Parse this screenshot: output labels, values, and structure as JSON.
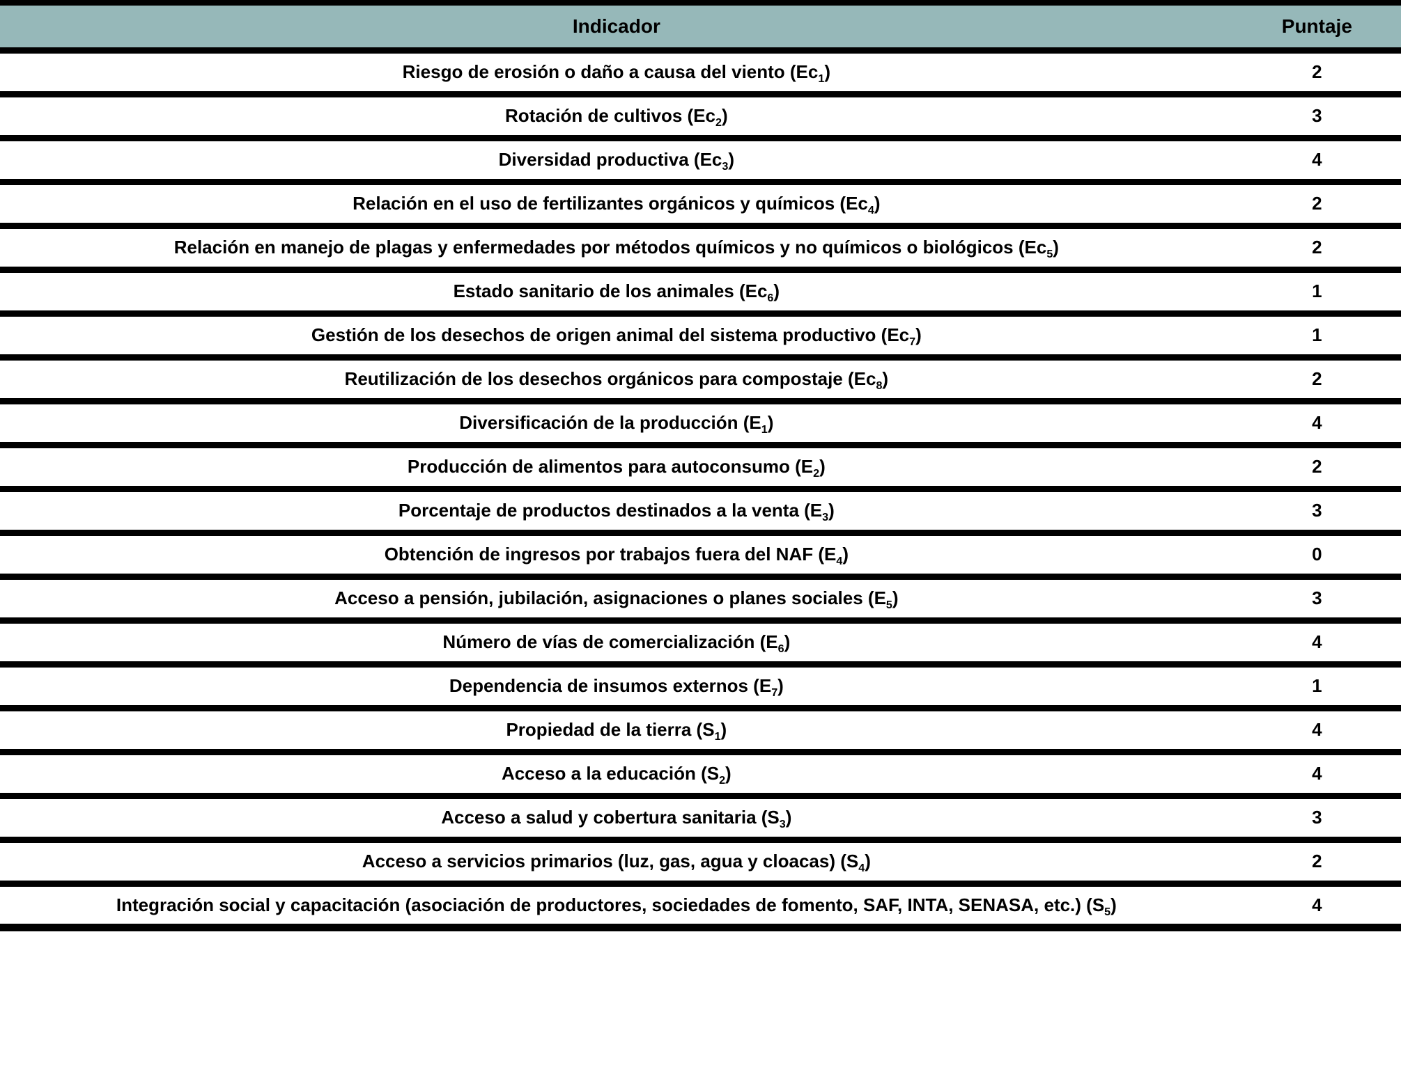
{
  "colors": {
    "header_bg": "#96b8b9",
    "border": "#000000",
    "text": "#000000"
  },
  "table": {
    "header": {
      "indicator": "Indicador",
      "score": "Puntaje"
    },
    "rows": [
      {
        "pre": "Riesgo de erosión o daño a causa del viento (Ec",
        "sub": "1",
        "post": ")",
        "score": "2"
      },
      {
        "pre": "Rotación de cultivos (Ec",
        "sub": "2",
        "post": ")",
        "score": "3"
      },
      {
        "pre": "Diversidad productiva (Ec",
        "sub": "3",
        "post": ")",
        "score": "4"
      },
      {
        "pre": "Relación en el uso de fertilizantes orgánicos y químicos (Ec",
        "sub": "4",
        "post": ")",
        "score": "2"
      },
      {
        "pre": "Relación en manejo de plagas y enfermedades por métodos químicos y no químicos o biológicos (Ec",
        "sub": "5",
        "post": ")",
        "score": "2"
      },
      {
        "pre": "Estado sanitario de los animales (Ec",
        "sub": "6",
        "post": ")",
        "score": "1"
      },
      {
        "pre": "Gestión de los desechos de origen animal del sistema productivo (Ec",
        "sub": "7",
        "post": ")",
        "score": "1"
      },
      {
        "pre": "Reutilización de los desechos orgánicos para compostaje (Ec",
        "sub": "8",
        "post": ")",
        "score": "2"
      },
      {
        "pre": "Diversificación de la producción (E",
        "sub": "1",
        "post": ")",
        "score": "4"
      },
      {
        "pre": "Producción de alimentos para autoconsumo (E",
        "sub": "2",
        "post": ")",
        "score": "2"
      },
      {
        "pre": "Porcentaje de productos destinados a la venta (E",
        "sub": "3",
        "post": ")",
        "score": "3"
      },
      {
        "pre": "Obtención de ingresos por trabajos fuera del NAF (E",
        "sub": "4",
        "post": ")",
        "score": "0"
      },
      {
        "pre": "Acceso a pensión, jubilación, asignaciones o planes sociales (E",
        "sub": "5",
        "post": ")",
        "score": "3"
      },
      {
        "pre": "Número de vías de comercialización (E",
        "sub": "6",
        "post": ")",
        "score": "4"
      },
      {
        "pre": "Dependencia de insumos externos (E",
        "sub": "7",
        "post": ")",
        "score": "1"
      },
      {
        "pre": "Propiedad de la tierra (S",
        "sub": "1",
        "post": ")",
        "score": "4"
      },
      {
        "pre": "Acceso a la educación (S",
        "sub": "2",
        "post": ")",
        "score": "4"
      },
      {
        "pre": "Acceso a salud y cobertura sanitaria (S",
        "sub": "3",
        "post": ")",
        "score": "3"
      },
      {
        "pre": "Acceso a servicios primarios (luz, gas, agua y cloacas) (S",
        "sub": "4",
        "post": ")",
        "score": "2"
      },
      {
        "pre": "Integración social y capacitación (asociación de productores, sociedades de fomento, SAF, INTA, SENASA, etc.) (S",
        "sub": "5",
        "post": ")",
        "score": "4"
      }
    ]
  }
}
